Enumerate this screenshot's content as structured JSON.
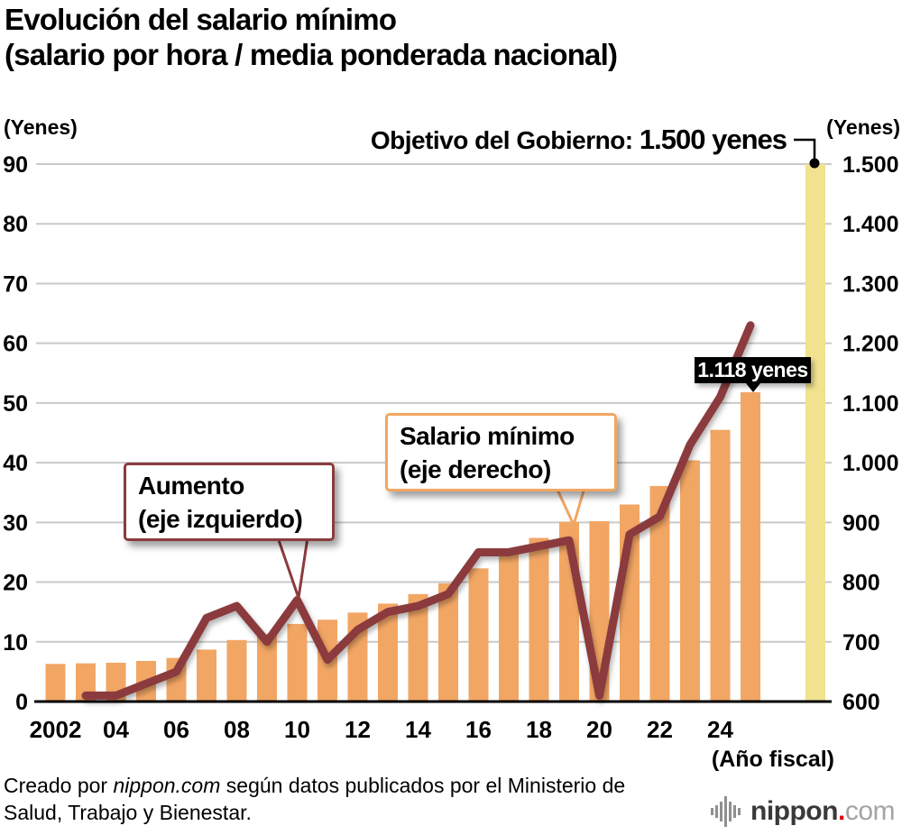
{
  "title": {
    "line1": "Evolución del salario mínimo",
    "line2": "(salario por hora / media ponderada nacional)"
  },
  "axis_units": {
    "left": "(Yenes)",
    "right": "(Yenes)",
    "x": "(Año fiscal)"
  },
  "target_annotation": {
    "prefix": "Objetivo del Gobierno: ",
    "value": "1.500 yenes"
  },
  "callouts": {
    "line_callout": {
      "line1": "Aumento",
      "line2": "(eje izquierdo)"
    },
    "bar_callout": {
      "line1": "Salario mínimo",
      "line2": "(eje derecho)"
    },
    "value_label": "1.118 yenes"
  },
  "footer": {
    "credit_prefix": "Creado por ",
    "credit_source": "nippon.com",
    "credit_suffix": " según datos publicados por el Ministerio de",
    "credit_line2": "Salud, Trabajo y Bienestar.",
    "logo_name": "nippon",
    "logo_dot": ".",
    "logo_tld": "com"
  },
  "colors": {
    "bar": "#F2A664",
    "target_bar": "#F1E28F",
    "line": "#8B3B3D",
    "bar_callout_border": "#F2A663",
    "grid": "#C9C9C9",
    "axis": "#000000",
    "label_bg": "#000000",
    "logo_red": "#E60012"
  },
  "chart_data": {
    "type": "bar",
    "subtype": "bar+line dual axis",
    "years": [
      2002,
      2003,
      2004,
      2005,
      2006,
      2007,
      2008,
      2009,
      2010,
      2011,
      2012,
      2013,
      2014,
      2015,
      2016,
      2017,
      2018,
      2019,
      2020,
      2021,
      2022,
      2023,
      2024,
      2025
    ],
    "series": [
      {
        "name": "Salario mínimo (eje derecho)",
        "type": "bar",
        "axis": "right",
        "values": [
          663,
          664,
          665,
          668,
          673,
          687,
          703,
          713,
          730,
          737,
          749,
          764,
          780,
          798,
          823,
          848,
          874,
          901,
          902,
          930,
          961,
          1004,
          1055,
          1118
        ]
      },
      {
        "name": "Aumento (eje izquierdo)",
        "type": "line",
        "axis": "left",
        "values": [
          null,
          1,
          1,
          3,
          5,
          14,
          16,
          10,
          17,
          7,
          12,
          15,
          16,
          18,
          25,
          25,
          26,
          27,
          1,
          28,
          31,
          43,
          51,
          63
        ]
      }
    ],
    "target": {
      "label": "Objetivo del Gobierno: 1.500 yenes",
      "value": 1500
    },
    "highlight": {
      "year": 2025,
      "bar_value": 1118,
      "label": "1.118 yenes"
    },
    "left_axis": {
      "min": 0,
      "max": 90,
      "step": 10,
      "ticks": [
        "0",
        "10",
        "20",
        "30",
        "40",
        "50",
        "60",
        "70",
        "80",
        "90"
      ]
    },
    "right_axis": {
      "min": 600,
      "max": 1500,
      "step": 100,
      "ticks": [
        "600",
        "700",
        "800",
        "900",
        "1.000",
        "1.100",
        "1.200",
        "1.300",
        "1.400",
        "1.500"
      ]
    },
    "x_ticks": [
      "2002",
      "04",
      "06",
      "08",
      "10",
      "12",
      "14",
      "16",
      "18",
      "20",
      "22",
      "24"
    ],
    "grid": true,
    "legend_position": "callouts-inside-plot"
  }
}
